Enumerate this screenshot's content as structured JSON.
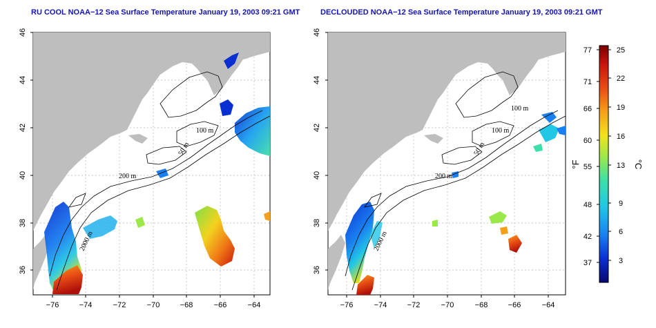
{
  "colors": {
    "land": "#bebebe",
    "water": "#ffffff",
    "title": "#1414b4",
    "grid": "#b4b4b4",
    "contour": "#000000",
    "colorbar": [
      "#08086e",
      "#0a2fd1",
      "#1a7ff0",
      "#22c7e6",
      "#3de0a8",
      "#9be84a",
      "#f2e31e",
      "#f6a01a",
      "#e84d14",
      "#c8160c",
      "#7a0000"
    ]
  },
  "left_panel": {
    "title": "RU COOL NOAA−12 Sea Surface Temperature January 19, 2003 09:21 GMT"
  },
  "right_panel": {
    "title": "DECLOUDED NOAA−12 Sea Surface Temperature January 19, 2003 09:21 GMT"
  },
  "axes": {
    "x_ticks": [
      "−76",
      "−74",
      "−72",
      "−70",
      "−68",
      "−66",
      "−64"
    ],
    "y_ticks": [
      "36",
      "38",
      "40",
      "42",
      "44",
      "46"
    ]
  },
  "contour_labels": {
    "m100": "100 m",
    "m50": "50 m",
    "m200": "200 m",
    "m2000": "2000 m"
  },
  "colorbar": {
    "fahrenheit_label": "°F",
    "celsius_label": "°C",
    "fahrenheit_ticks": [
      "77",
      "71",
      "66",
      "60",
      "55",
      "48",
      "42",
      "37"
    ],
    "celsius_ticks": [
      "25",
      "22",
      "19",
      "16",
      "13",
      "9",
      "6",
      "3"
    ]
  }
}
